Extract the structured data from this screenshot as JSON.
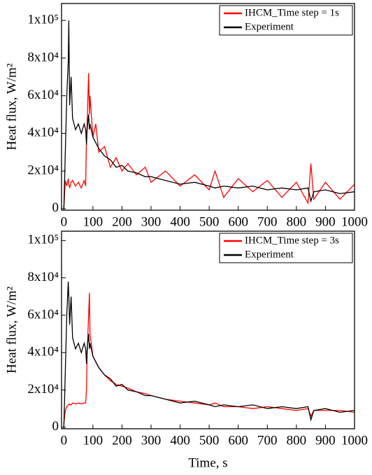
{
  "chart_data": [
    {
      "type": "line",
      "ylabel": "Heat flux, W/m²",
      "x": [
        0,
        5,
        10,
        15,
        17,
        20,
        25,
        30,
        40,
        50,
        60,
        70,
        75,
        78,
        80,
        85,
        88,
        90,
        100,
        110,
        120,
        140,
        160,
        180,
        200,
        220,
        250,
        280,
        300,
        350,
        400,
        450,
        500,
        520,
        550,
        600,
        650,
        700,
        750,
        800,
        840,
        850,
        860,
        900,
        950,
        1000
      ],
      "series": [
        {
          "name": "IHCM_Time step = 1s",
          "color": "#ff0000",
          "values": [
            0,
            15000,
            12000,
            16000,
            13000,
            11000,
            14000,
            15000,
            12000,
            14000,
            11000,
            15000,
            12000,
            38000,
            45000,
            72000,
            50000,
            60000,
            38000,
            45000,
            30000,
            33000,
            22000,
            27000,
            20000,
            24000,
            18000,
            22000,
            14000,
            20000,
            12000,
            18000,
            10000,
            20000,
            6000,
            16000,
            9000,
            15000,
            6000,
            14000,
            3000,
            24000,
            5000,
            14000,
            5000,
            13000
          ]
        },
        {
          "name": "Experiment",
          "color": "#000000",
          "values": [
            0,
            30000,
            60000,
            78000,
            100000,
            55000,
            70000,
            48000,
            42000,
            45000,
            40000,
            45000,
            42000,
            34000,
            42000,
            50000,
            42000,
            45000,
            38000,
            35000,
            32000,
            28000,
            26000,
            22000,
            23000,
            20000,
            19000,
            17000,
            17000,
            15000,
            13000,
            14000,
            12000,
            11000,
            12000,
            11000,
            12000,
            10000,
            11000,
            10000,
            11000,
            4000,
            9000,
            10000,
            8000,
            9000
          ]
        }
      ],
      "xlim": [
        -8,
        1000
      ],
      "ylim": [
        -800,
        109000
      ],
      "xticks": [
        0,
        100,
        200,
        300,
        400,
        500,
        600,
        700,
        800,
        900,
        1000
      ],
      "yticks": [
        0,
        {
          "value": 20000,
          "label": "2x10⁴"
        },
        {
          "value": 40000,
          "label": "4x10⁴"
        },
        {
          "value": 60000,
          "label": "6x10⁴"
        },
        {
          "value": 80000,
          "label": "8x10⁴"
        },
        {
          "value": 100000,
          "label": "1x10⁵"
        }
      ],
      "legend": "upper right"
    },
    {
      "type": "line",
      "ylabel": "Heat flux, W/m²",
      "xlabel": "Time, s",
      "x": [
        0,
        5,
        10,
        15,
        17,
        20,
        25,
        30,
        40,
        50,
        60,
        70,
        75,
        78,
        80,
        85,
        88,
        90,
        100,
        110,
        120,
        140,
        160,
        180,
        200,
        220,
        250,
        280,
        300,
        350,
        400,
        450,
        500,
        520,
        550,
        600,
        650,
        700,
        750,
        800,
        840,
        850,
        860,
        900,
        950,
        1000
      ],
      "series": [
        {
          "name": "IHCM_Time step = 3s",
          "color": "#ff0000",
          "values": [
            2000,
            9000,
            11000,
            12000,
            12000,
            12500,
            12000,
            13000,
            12500,
            13000,
            12500,
            13000,
            13000,
            20000,
            38000,
            60000,
            72000,
            50000,
            38000,
            35000,
            32000,
            28000,
            25000,
            23000,
            22000,
            21000,
            19000,
            18000,
            17000,
            15000,
            14000,
            13000,
            12000,
            13000,
            11000,
            11000,
            10000,
            11000,
            10000,
            9000,
            10000,
            6000,
            9000,
            9000,
            9000,
            8000
          ]
        },
        {
          "name": "Experiment",
          "color": "#000000",
          "values": [
            0,
            30000,
            60000,
            78000,
            70000,
            55000,
            70000,
            48000,
            42000,
            45000,
            40000,
            45000,
            42000,
            34000,
            42000,
            50000,
            42000,
            45000,
            38000,
            35000,
            32000,
            28000,
            26000,
            22000,
            23000,
            20000,
            19000,
            17000,
            17000,
            15000,
            13000,
            14000,
            12000,
            11000,
            12000,
            11000,
            12000,
            10000,
            11000,
            10000,
            11000,
            4000,
            9000,
            10000,
            8000,
            9000
          ]
        }
      ],
      "xlim": [
        -8,
        1000
      ],
      "ylim": [
        -800,
        105000
      ],
      "xticks": [
        0,
        100,
        200,
        300,
        400,
        500,
        600,
        700,
        800,
        900,
        1000
      ],
      "yticks": [
        0,
        {
          "value": 20000,
          "label": "2x10⁴"
        },
        {
          "value": 40000,
          "label": "4x10⁴"
        },
        {
          "value": 60000,
          "label": "6x10⁴"
        },
        {
          "value": 80000,
          "label": "8x10⁴"
        },
        {
          "value": 100000,
          "label": "1x10⁵"
        }
      ],
      "legend": "upper right"
    }
  ]
}
